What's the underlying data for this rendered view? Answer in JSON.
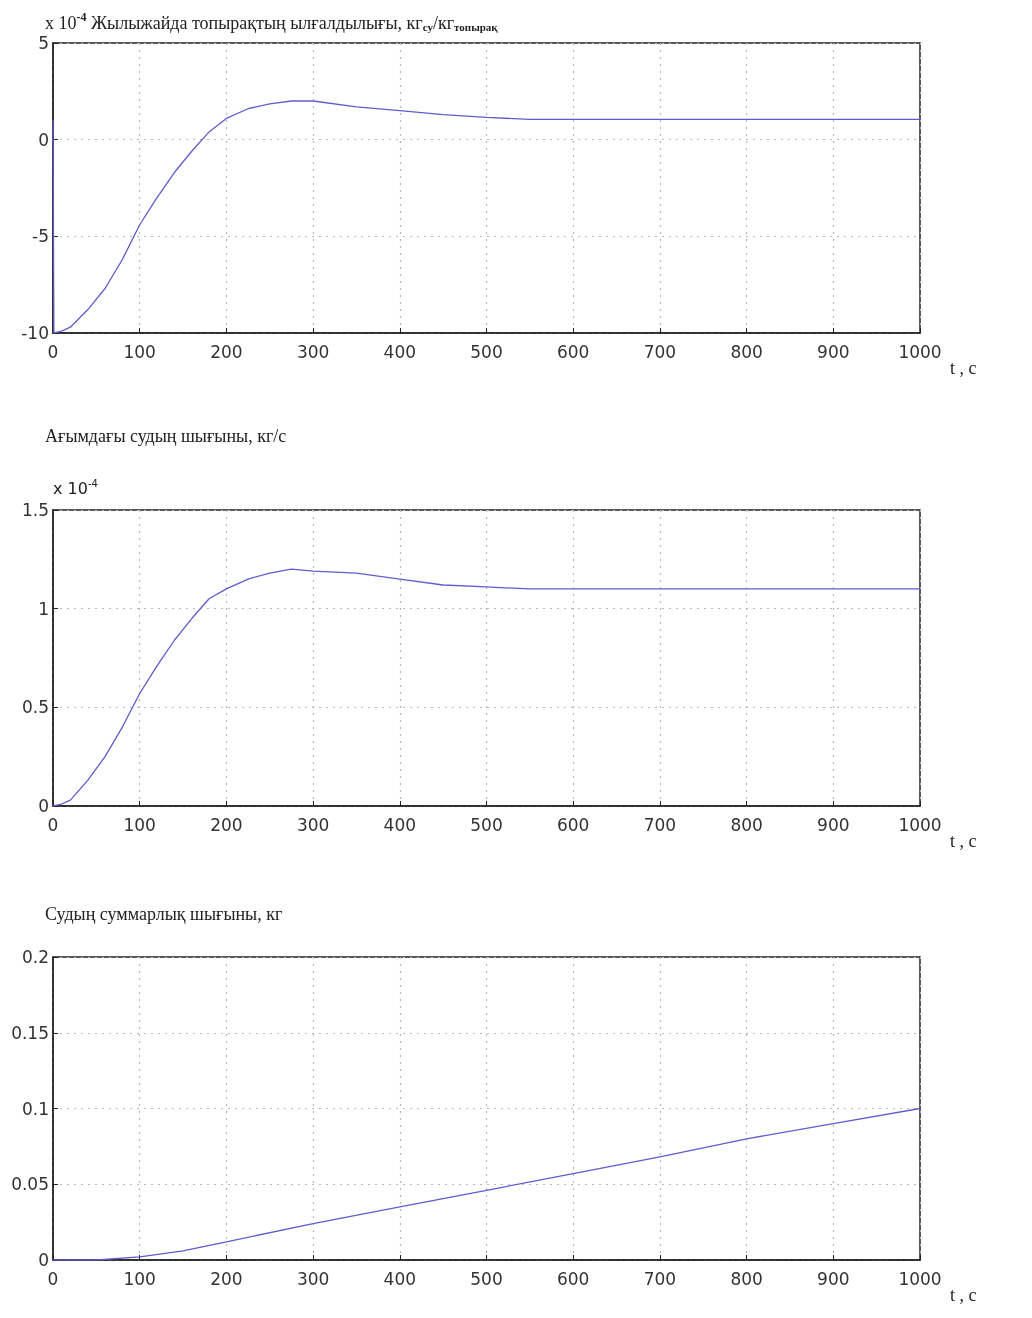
{
  "chart_data": [
    {
      "type": "line",
      "title": "x 10$^{-4}$ Жылыжайда топырақтың ылғалдылығы, кг$_{су}$/кг$_{топырақ}$",
      "xlabel": "t , c",
      "marker": "none",
      "grid": true,
      "x": [
        0,
        1,
        10,
        20,
        40,
        60,
        80,
        100,
        120,
        140,
        160,
        180,
        200,
        225,
        250,
        275,
        300,
        350,
        400,
        450,
        500,
        550,
        600,
        700,
        800,
        900,
        1000
      ],
      "series": [
        {
          "color": "#5d5dcf",
          "values": [
            1,
            -10,
            -9.9,
            -9.7,
            -8.8,
            -7.7,
            -6.2,
            -4.4,
            -3.0,
            -1.7,
            -0.6,
            0.4,
            1.1,
            1.6,
            1.85,
            2.0,
            2.0,
            1.7,
            1.5,
            1.3,
            1.15,
            1.05,
            1.05,
            1.05,
            1.05,
            1.05,
            1.05
          ]
        }
      ],
      "xlim": [
        0,
        1000
      ],
      "xticks": [
        0,
        100,
        200,
        300,
        400,
        500,
        600,
        700,
        800,
        900,
        1000
      ],
      "ylim": [
        -10,
        5
      ],
      "yticks": [
        -10,
        -5,
        0,
        5
      ]
    },
    {
      "type": "line",
      "title": "Ағымдағы судың шығыны, кг/с",
      "ylabel": "x 10$^{-4}$",
      "xlabel": "t , c",
      "marker": "none",
      "grid": true,
      "x": [
        0,
        10,
        20,
        40,
        60,
        80,
        100,
        120,
        140,
        160,
        180,
        200,
        225,
        250,
        275,
        300,
        350,
        400,
        450,
        500,
        550,
        600,
        700,
        800,
        900,
        1000
      ],
      "series": [
        {
          "color": "#5d5dcf",
          "values": [
            0,
            0.01,
            0.03,
            0.13,
            0.25,
            0.4,
            0.57,
            0.71,
            0.84,
            0.95,
            1.05,
            1.1,
            1.15,
            1.18,
            1.2,
            1.19,
            1.18,
            1.15,
            1.12,
            1.11,
            1.1,
            1.1,
            1.1,
            1.1,
            1.1,
            1.1
          ]
        }
      ],
      "xlim": [
        0,
        1000
      ],
      "xticks": [
        0,
        100,
        200,
        300,
        400,
        500,
        600,
        700,
        800,
        900,
        1000
      ],
      "ylim": [
        0,
        1.5
      ],
      "yticks": [
        0,
        0.5,
        1,
        1.5
      ]
    },
    {
      "type": "line",
      "title": "Судың суммарлық шығыны, кг",
      "xlabel": "t , c",
      "marker": "none",
      "grid": true,
      "x": [
        0,
        50,
        100,
        150,
        200,
        300,
        400,
        500,
        600,
        700,
        800,
        900,
        1000
      ],
      "series": [
        {
          "color": "#5d5dcf",
          "values": [
            0,
            0,
            0.002,
            0.006,
            0.012,
            0.024,
            0.035,
            0.046,
            0.057,
            0.068,
            0.08,
            0.09,
            0.1
          ]
        }
      ],
      "xlim": [
        0,
        1000
      ],
      "xticks": [
        0,
        100,
        200,
        300,
        400,
        500,
        600,
        700,
        800,
        900,
        1000
      ],
      "ylim": [
        0,
        0.2
      ],
      "yticks": [
        0,
        0.05,
        0.1,
        0.15,
        0.2
      ]
    }
  ]
}
